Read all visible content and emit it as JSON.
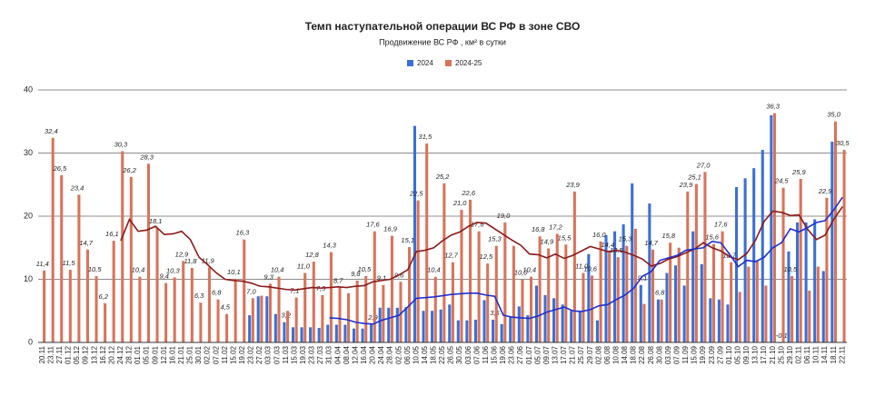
{
  "chart_data": {
    "type": "bar",
    "title": "Темп наступательной операции ВС РФ в зоне СВО",
    "subtitle": "Продвижение ВС РФ , км² в сутки",
    "categories": [
      "20.11",
      "23.11",
      "27.11",
      "01.12",
      "05.12",
      "09.12",
      "13.12",
      "16.12",
      "20.12",
      "24.12",
      "28.12",
      "01.01",
      "05.01",
      "09.01",
      "12.01",
      "16.01",
      "21.01",
      "25.01",
      "30.01",
      "02.02",
      "07.02",
      "11.02",
      "15.02",
      "19.02",
      "23.02",
      "27.02",
      "03.03",
      "07.03",
      "11.03",
      "15.03",
      "19.03",
      "23.03",
      "27.03",
      "31.03",
      "04.04",
      "08.04",
      "12.04",
      "16.04",
      "20.04",
      "24.04",
      "28.04",
      "02.05",
      "06.05",
      "10.05",
      "14.05",
      "18.05",
      "22.05",
      "26.05",
      "30.05",
      "03.06",
      "07.06",
      "11.06",
      "15.06",
      "19.06",
      "23.06",
      "27.06",
      "01.07",
      "05.07",
      "09.07",
      "13.07",
      "17.07",
      "21.07",
      "25.07",
      "29.07",
      "02.08",
      "06.08",
      "10.08",
      "14.08",
      "18.08",
      "22.08",
      "26.08",
      "30.08",
      "03.09",
      "07.09",
      "11.09",
      "15.09",
      "19.09",
      "23.09",
      "27.09",
      "01.10",
      "05.10",
      "09.10",
      "13.10",
      "17.10",
      "21.10",
      "25.10",
      "29.10",
      "02.11",
      "06.11",
      "10.11",
      "14.11",
      "18.11",
      "22.11"
    ],
    "series": [
      {
        "name": "2024",
        "color": "#3a6fd8",
        "values": [
          null,
          null,
          null,
          null,
          null,
          null,
          null,
          null,
          null,
          null,
          null,
          null,
          null,
          null,
          null,
          null,
          null,
          null,
          null,
          null,
          null,
          null,
          null,
          null,
          4.3,
          7.3,
          7.3,
          4.5,
          3.2,
          2.4,
          2.4,
          2.4,
          2.3,
          2.8,
          2.8,
          2.8,
          2.2,
          2.2,
          2.9,
          5.5,
          5.5,
          5.5,
          5.6,
          34.3,
          5.0,
          5.0,
          5.2,
          6.0,
          3.5,
          3.5,
          3.6,
          6.7,
          3.6,
          2.9,
          4.0,
          5.7,
          4.3,
          9.0,
          7.5,
          7.0,
          6.0,
          5.0,
          5.0,
          14.0,
          3.5,
          17.0,
          17.6,
          18.7,
          25.2,
          9.1,
          22.0,
          6.8,
          11.0,
          12.2,
          9.0,
          17.6,
          12.4,
          7.0,
          6.8,
          6.0,
          24.6,
          26.0,
          27.6,
          30.5,
          36.0,
          -0.1,
          14.4,
          19.0,
          19.0,
          19.5,
          11.3,
          31.8,
          null
        ],
        "value_labels": [
          null,
          null,
          null,
          null,
          null,
          null,
          null,
          null,
          null,
          null,
          null,
          null,
          null,
          null,
          null,
          null,
          null,
          null,
          null,
          null,
          null,
          null,
          null,
          null,
          null,
          null,
          null,
          null,
          "3,2",
          null,
          null,
          null,
          null,
          null,
          null,
          null,
          null,
          null,
          "2,9",
          null,
          null,
          null,
          null,
          null,
          null,
          null,
          null,
          null,
          null,
          null,
          null,
          null,
          "3,6",
          null,
          null,
          null,
          null,
          null,
          null,
          null,
          null,
          null,
          null,
          null,
          null,
          null,
          null,
          null,
          null,
          "9,1",
          null,
          "6,8",
          null,
          null,
          null,
          null,
          null,
          null,
          null,
          null,
          null,
          null,
          null,
          null,
          null,
          "-0,1",
          null,
          null,
          null,
          null,
          null,
          null,
          null
        ]
      },
      {
        "name": "2024-25",
        "color": "#d9735a",
        "values": [
          11.4,
          32.4,
          26.5,
          11.5,
          23.4,
          14.7,
          10.5,
          6.2,
          16.1,
          30.3,
          26.2,
          10.4,
          28.3,
          18.1,
          9.4,
          10.3,
          12.9,
          11.8,
          6.3,
          11.9,
          6.8,
          4.5,
          10.1,
          16.3,
          7.0,
          7.4,
          9.3,
          10.4,
          5.0,
          7.1,
          11.0,
          12.8,
          7.5,
          14.3,
          8.7,
          7.8,
          9.8,
          10.5,
          17.6,
          9.1,
          16.9,
          9.6,
          15.1,
          22.5,
          31.5,
          10.4,
          25.2,
          12.7,
          21.0,
          22.6,
          17.6,
          12.5,
          15.3,
          19.0,
          15.3,
          10.0,
          10.4,
          16.8,
          14.9,
          17.2,
          15.5,
          23.9,
          11.0,
          10.6,
          16.0,
          14.4,
          13.5,
          15.3,
          18.0,
          6.1,
          14.7,
          6.8,
          15.8,
          15.0,
          23.9,
          25.1,
          27.0,
          15.6,
          17.6,
          12.7,
          8.0,
          12.0,
          13.0,
          9.0,
          36.3,
          24.5,
          10.5,
          25.9,
          8.2,
          12.0,
          22.9,
          35.0,
          30.5
        ],
        "value_labels": [
          "11,4",
          "32,4",
          "26,5",
          "11,5",
          "23,4",
          "14,7",
          "10,5",
          "6,2",
          "16,1",
          "30,3",
          "26,2",
          "10,4",
          "28,3",
          "18,1",
          "9,4",
          "10,3",
          "12,9",
          "11,8",
          "6,3",
          "11,9",
          "6,8",
          "4,5",
          "10,1",
          "16,3",
          "7,0",
          null,
          "9,3",
          "10,4",
          null,
          "7,1",
          "11,0",
          "12,8",
          "7,5",
          "14,3",
          "8,7",
          null,
          "9,8",
          "10,5",
          "17,6",
          "9,1",
          "16,9",
          "9,6",
          "15,1",
          "22,5",
          "31,5",
          "10,4",
          "25,2",
          "12,7",
          "21,0",
          "22,6",
          "17,6",
          "12,5",
          "15,3",
          "19,0",
          null,
          "10,0",
          "10,4",
          "16,8",
          "14,9",
          "17,2",
          "15,5",
          "23,9",
          "11,0",
          "10,6",
          "16,0",
          "14,4",
          "13,5",
          "15,3",
          null,
          null,
          "14,7",
          null,
          "15,8",
          null,
          "23,9",
          "25,1",
          "27,0",
          "15,6",
          "17,6",
          "12,7",
          null,
          null,
          null,
          null,
          "36,3",
          "24,5",
          "10,5",
          "25,9",
          null,
          null,
          "22,9",
          "35,0",
          "30,5"
        ]
      }
    ],
    "trends": [
      {
        "color": "#8b1a1a",
        "values": [
          null,
          null,
          null,
          null,
          null,
          null,
          null,
          null,
          null,
          16.1,
          19.5,
          17.6,
          17.8,
          18.4,
          17.1,
          17.2,
          17.6,
          16.3,
          13.5,
          12.3,
          11.0,
          10.0,
          9.8,
          9.7,
          9.4,
          8.9,
          8.8,
          8.6,
          8.4,
          8.3,
          8.5,
          8.7,
          8.6,
          8.7,
          8.8,
          8.7,
          8.9,
          9.0,
          9.6,
          9.8,
          10.0,
          10.7,
          11.5,
          14.4,
          14.6,
          15.0,
          16.1,
          17.0,
          17.5,
          18.4,
          19.0,
          18.9,
          18.0,
          17.1,
          16.2,
          15.4,
          14.0,
          13.9,
          13.4,
          14.0,
          13.3,
          13.8,
          14.5,
          15.2,
          14.8,
          14.4,
          14.6,
          14.3,
          13.8,
          13.2,
          12.1,
          12.5,
          13.2,
          13.6,
          14.2,
          14.8,
          15.8,
          15.0,
          14.5,
          13.6,
          13.1,
          14.1,
          16.2,
          19.2,
          20.8,
          20.6,
          20.1,
          20.2,
          17.9,
          16.3,
          17.0,
          19.5,
          21.5
        ]
      },
      {
        "color": "#1f2fd0",
        "values": [
          null,
          null,
          null,
          null,
          null,
          null,
          null,
          null,
          null,
          null,
          null,
          null,
          null,
          null,
          null,
          null,
          null,
          null,
          null,
          null,
          null,
          null,
          null,
          null,
          null,
          null,
          null,
          null,
          null,
          null,
          null,
          null,
          null,
          3.9,
          3.8,
          3.6,
          3.2,
          3.0,
          2.9,
          3.5,
          3.9,
          4.3,
          5.6,
          7.0,
          7.1,
          7.2,
          7.4,
          7.6,
          7.7,
          7.8,
          7.8,
          7.5,
          7.3,
          4.3,
          4.0,
          3.9,
          3.8,
          4.2,
          4.8,
          5.2,
          5.6,
          5.0,
          4.9,
          5.2,
          5.8,
          6.0,
          6.8,
          7.5,
          8.6,
          10.5,
          11.2,
          13.0,
          13.4,
          13.8,
          14.6,
          14.8,
          15.0,
          16.0,
          15.8,
          14.0,
          12.0,
          13.0,
          12.8,
          13.5,
          15.0,
          15.8,
          18.0,
          17.5,
          18.2,
          19.0,
          19.3,
          21.0,
          23.0
        ]
      }
    ],
    "ylim": [
      0,
      40
    ],
    "yticks": [
      0,
      10,
      20,
      30,
      40
    ],
    "grid": true,
    "legend": "top"
  }
}
